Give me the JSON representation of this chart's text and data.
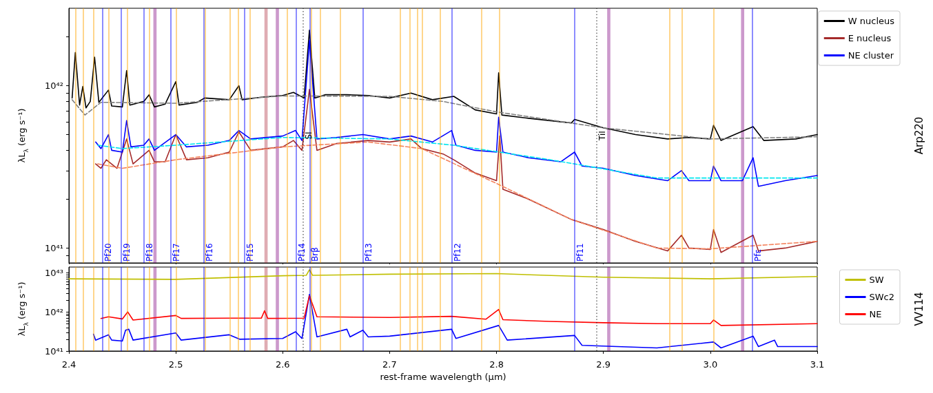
{
  "chart_data": [
    {
      "type": "line",
      "ylabel": "λL$_{λ}$ (erg s⁻¹)",
      "annotations": [
        "Arp220"
      ],
      "log": "y",
      "marker": "none",
      "legend": "right",
      "tick_labels": "y",
      "xlim": [
        2.4,
        3.1
      ],
      "xticks": [
        {
          "value": 2.4,
          "label": null
        },
        {
          "value": 2.5,
          "label": null
        },
        {
          "value": 2.6,
          "label": null
        },
        {
          "value": 2.7,
          "label": null
        },
        {
          "value": 2.8,
          "label": null
        },
        {
          "value": 2.9,
          "label": null
        },
        {
          "value": 3,
          "label": null
        },
        {
          "value": 3.1,
          "label": null
        }
      ],
      "ylim": [
        8.1e+40,
        3e+42
      ],
      "yticks": [
        {
          "value": 9e+40,
          "label": null
        },
        {
          "value": 1e+41,
          "label": "10⁴¹"
        },
        {
          "value": 2e+41,
          "label": null
        },
        {
          "value": 3e+41,
          "label": null
        },
        {
          "value": 4e+41,
          "label": null
        },
        {
          "value": 5e+41,
          "label": null
        },
        {
          "value": 6e+41,
          "label": null
        },
        {
          "value": 7e+41,
          "label": null
        },
        {
          "value": 8e+41,
          "label": null
        },
        {
          "value": 9e+41,
          "label": null
        },
        {
          "value": 1e+42,
          "label": "10⁴²"
        },
        {
          "value": 2e+42,
          "label": null
        }
      ],
      "series": [
        {
          "name": "W nucleus",
          "color": "#000000",
          "x": [
            2.403,
            2.406,
            2.41,
            2.413,
            2.416,
            2.42,
            2.424,
            2.428,
            2.437,
            2.44,
            2.45,
            2.454,
            2.457,
            2.47,
            2.475,
            2.48,
            2.49,
            2.5,
            2.503,
            2.52,
            2.527,
            2.55,
            2.559,
            2.562,
            2.58,
            2.6,
            2.61,
            2.62,
            2.625,
            2.63,
            2.64,
            2.66,
            2.68,
            2.7,
            2.72,
            2.74,
            2.76,
            2.78,
            2.8,
            2.802,
            2.805,
            2.83,
            2.87,
            2.873,
            2.9,
            2.93,
            2.96,
            2.98,
            3.0,
            3.003,
            3.01,
            3.04,
            3.05,
            3.08,
            3.1
          ],
          "values": [
            8.4e+41,
            1.6e+42,
            7.6e+41,
            9.9e+41,
            7.3e+41,
            8e+41,
            1.5e+42,
            7.9e+41,
            9.4e+41,
            7.5e+41,
            7.4e+41,
            1.24e+42,
            7.6e+41,
            8e+41,
            8.8e+41,
            7.4e+41,
            7.7e+41,
            1.06e+42,
            7.6e+41,
            7.9e+41,
            8.4e+41,
            8.2e+41,
            1e+42,
            8.2e+41,
            8.5e+41,
            8.7e+41,
            9.1e+41,
            8.4e+41,
            2.2e+42,
            8.4e+41,
            8.8e+41,
            8.8e+41,
            8.7e+41,
            8.4e+41,
            9e+41,
            8.2e+41,
            8.6e+41,
            7.1e+41,
            6.7e+41,
            1.2e+42,
            6.6e+41,
            6.3e+41,
            5.9e+41,
            6.2e+41,
            5.5e+41,
            5e+41,
            4.7e+41,
            4.8e+41,
            4.7e+41,
            5.7e+41,
            4.6e+41,
            5.6e+41,
            4.6e+41,
            4.7e+41,
            5e+41
          ]
        },
        {
          "name": "E nucleus",
          "color": "#a52a2a",
          "x": [
            2.425,
            2.43,
            2.435,
            2.445,
            2.454,
            2.46,
            2.475,
            2.48,
            2.49,
            2.5,
            2.51,
            2.53,
            2.55,
            2.559,
            2.57,
            2.6,
            2.61,
            2.618,
            2.625,
            2.632,
            2.65,
            2.68,
            2.7,
            2.72,
            2.73,
            2.75,
            2.76,
            2.78,
            2.8,
            2.803,
            2.806,
            2.83,
            2.87,
            2.9,
            2.93,
            2.96,
            2.973,
            2.98,
            3.0,
            3.003,
            3.01,
            3.04,
            3.045,
            3.07,
            3.1
          ],
          "values": [
            3.3e+41,
            3.1e+41,
            3.5e+41,
            3.1e+41,
            4.7e+41,
            3.3e+41,
            4e+41,
            3.4e+41,
            3.4e+41,
            5e+41,
            3.5e+41,
            3.6e+41,
            3.9e+41,
            5.2e+41,
            4e+41,
            4.2e+41,
            4.6e+41,
            4e+41,
            9.5e+41,
            4e+41,
            4.4e+41,
            4.6e+41,
            4.5e+41,
            4.7e+41,
            4.1e+41,
            3.8e+41,
            3.5e+41,
            2.9e+41,
            2.6e+41,
            4.9e+41,
            2.3e+41,
            2e+41,
            1.5e+41,
            1.3e+41,
            1.1e+41,
            9.6e+40,
            1.2e+41,
            1e+41,
            9.8e+40,
            1.3e+41,
            9.4e+40,
            1.2e+41,
            9.6e+40,
            1e+41,
            1.1e+41
          ]
        },
        {
          "name": "NE cluster",
          "color": "#0000ff",
          "x": [
            2.425,
            2.43,
            2.437,
            2.44,
            2.45,
            2.454,
            2.458,
            2.47,
            2.475,
            2.48,
            2.5,
            2.51,
            2.53,
            2.55,
            2.559,
            2.57,
            2.6,
            2.612,
            2.618,
            2.625,
            2.632,
            2.65,
            2.675,
            2.7,
            2.72,
            2.74,
            2.758,
            2.762,
            2.78,
            2.8,
            2.802,
            2.806,
            2.83,
            2.86,
            2.873,
            2.88,
            2.9,
            2.93,
            2.96,
            2.973,
            2.98,
            3.0,
            3.003,
            3.01,
            3.03,
            3.04,
            3.045,
            3.07,
            3.1
          ],
          "values": [
            4.5e+41,
            4.1e+41,
            5e+41,
            4e+41,
            3.9e+41,
            6.1e+41,
            4.2e+41,
            4.3e+41,
            4.7e+41,
            4e+41,
            5e+41,
            4.2e+41,
            4.3e+41,
            4.6e+41,
            5.3e+41,
            4.7e+41,
            4.9e+41,
            5.3e+41,
            4.6e+41,
            1.9e+42,
            4.7e+41,
            4.8e+41,
            5e+41,
            4.7e+41,
            4.9e+41,
            4.5e+41,
            5.3e+41,
            4.3e+41,
            4e+41,
            3.9e+41,
            6.4e+41,
            3.9e+41,
            3.6e+41,
            3.4e+41,
            3.9e+41,
            3.2e+41,
            3.1e+41,
            2.8e+41,
            2.6e+41,
            3e+41,
            2.6e+41,
            2.6e+41,
            3.2e+41,
            2.6e+41,
            2.6e+41,
            3.6e+41,
            2.4e+41,
            2.6e+41,
            2.8e+41
          ]
        },
        {
          "color": "#808080",
          "line_style": "dashed",
          "x": [
            2.403,
            2.415,
            2.43,
            2.5,
            2.6,
            2.7,
            2.75,
            2.8,
            2.9,
            3.0,
            3.1
          ],
          "values": [
            8.2e+41,
            6.6e+41,
            7.9e+41,
            7.8e+41,
            8.65e+41,
            8.6e+41,
            8e+41,
            6.9e+41,
            5.5e+41,
            4.7e+41,
            4.85e+41
          ]
        },
        {
          "color": "#f4845f",
          "line_style": "dashed",
          "x": [
            2.427,
            2.45,
            2.5,
            2.6,
            2.68,
            2.73,
            2.8,
            2.87,
            2.95,
            3.0,
            3.1
          ],
          "values": [
            3.3e+41,
            3.1e+41,
            3.5e+41,
            4.2e+41,
            4.5e+41,
            4.1e+41,
            2.5e+41,
            1.5e+41,
            1e+41,
            9.9e+40,
            1.1e+41
          ]
        },
        {
          "color": "#00e5ee",
          "line_style": "dashed",
          "x": [
            2.427,
            2.45,
            2.5,
            2.6,
            2.7,
            2.76,
            2.85,
            2.95,
            3.1
          ],
          "values": [
            4.3e+41,
            4.1e+41,
            4.3e+41,
            4.8e+41,
            4.7e+41,
            4.3e+41,
            3.5e+41,
            2.7e+41,
            2.7e+41
          ]
        }
      ],
      "ref_lines": [
        {
          "axis": "x",
          "value": 2.4066,
          "color": "#ffa500"
        },
        {
          "axis": "x",
          "value": 2.4131,
          "color": "#ffa500"
        },
        {
          "axis": "x",
          "value": 2.4233,
          "color": "#ffa500"
        },
        {
          "axis": "x",
          "value": 2.4371,
          "color": "#ffa500"
        },
        {
          "axis": "x",
          "value": 2.4546,
          "color": "#ffa500"
        },
        {
          "axis": "x",
          "value": 2.4755,
          "color": "#ffa500"
        },
        {
          "axis": "x",
          "value": 2.5003,
          "color": "#ffa500"
        },
        {
          "axis": "x",
          "value": 2.5272,
          "color": "#ffa500"
        },
        {
          "axis": "x",
          "value": 2.5507,
          "color": "#ffa500"
        },
        {
          "axis": "x",
          "value": 2.5585,
          "color": "#ffa500"
        },
        {
          "axis": "x",
          "value": 2.5695,
          "color": "#ffa500"
        },
        {
          "axis": "x",
          "value": 2.604,
          "color": "#ffa500"
        },
        {
          "axis": "x",
          "value": 2.6267,
          "color": "#ffa500"
        },
        {
          "axis": "x",
          "value": 2.6348,
          "color": "#ffa500"
        },
        {
          "axis": "x",
          "value": 2.6536,
          "color": "#ffa500"
        },
        {
          "axis": "x",
          "value": 2.7099,
          "color": "#ffa500"
        },
        {
          "axis": "x",
          "value": 2.7188,
          "color": "#ffa500"
        },
        {
          "axis": "x",
          "value": 2.7261,
          "color": "#ffa500"
        },
        {
          "axis": "x",
          "value": 2.7306,
          "color": "#ffa500"
        },
        {
          "axis": "x",
          "value": 2.7475,
          "color": "#ffa500"
        },
        {
          "axis": "x",
          "value": 2.786,
          "color": "#ffa500"
        },
        {
          "axis": "x",
          "value": 2.803,
          "color": "#ffa500"
        },
        {
          "axis": "x",
          "value": 2.9617,
          "color": "#ffa500"
        },
        {
          "axis": "x",
          "value": 2.9737,
          "color": "#ffa500"
        },
        {
          "axis": "x",
          "value": 3.0034,
          "color": "#ffa500"
        },
        {
          "axis": "x",
          "value": 2.4314,
          "label": "Pf20",
          "color": "#0000ff"
        },
        {
          "axis": "x",
          "value": 2.449,
          "label": "Pf19",
          "color": "#0000ff"
        },
        {
          "axis": "x",
          "value": 2.47,
          "label": "Pf18",
          "color": "#0000ff"
        },
        {
          "axis": "x",
          "value": 2.4953,
          "label": "Pf17",
          "color": "#0000ff"
        },
        {
          "axis": "x",
          "value": 2.5263,
          "label": "Pf16",
          "color": "#0000ff"
        },
        {
          "axis": "x",
          "value": 2.5643,
          "label": "Pf15",
          "color": "#0000ff"
        },
        {
          "axis": "x",
          "value": 2.6126,
          "label": "Pf14",
          "color": "#0000ff"
        },
        {
          "axis": "x",
          "value": 2.6252,
          "label": "Brβ",
          "color": "#0000ff"
        },
        {
          "axis": "x",
          "value": 2.6751,
          "label": "Pf13",
          "color": "#0000ff"
        },
        {
          "axis": "x",
          "value": 2.7583,
          "label": "Pf12",
          "color": "#0000ff"
        },
        {
          "axis": "x",
          "value": 2.873,
          "label": "Pf11",
          "color": "#0000ff"
        },
        {
          "axis": "x",
          "value": 3.0392,
          "label": "Pfε",
          "color": "#0000ff"
        },
        {
          "axis": "x",
          "value": 2.6191,
          "label": "SI",
          "color": "#000000",
          "line_style": "dotted"
        },
        {
          "axis": "x",
          "value": 2.8935,
          "label": "TiI",
          "color": "#000000",
          "line_style": "dotted"
        }
      ],
      "bands": [
        {
          "axis": "x",
          "from": 2.479,
          "to": 2.482,
          "color": "#800080"
        },
        {
          "axis": "x",
          "from": 2.5829,
          "to": 2.5859,
          "color": "#b03040"
        },
        {
          "axis": "x",
          "from": 2.5935,
          "to": 2.5965,
          "color": "#800080"
        },
        {
          "axis": "x",
          "from": 2.9035,
          "to": 2.9065,
          "color": "#800080"
        },
        {
          "axis": "x",
          "from": 3.0287,
          "to": 3.0317,
          "color": "#800080"
        }
      ]
    },
    {
      "type": "line",
      "xlabel": "rest-frame wavelength (μm)",
      "ylabel": "λL$_{λ}$ (erg s⁻¹)",
      "annotations": [
        "VV114"
      ],
      "log": "y",
      "marker": "none",
      "legend": "right",
      "xlim": [
        2.4,
        3.1
      ],
      "xticks": [
        2.4,
        2.5,
        2.6,
        2.7,
        2.8,
        2.9,
        {
          "value": 3,
          "label": "3.0"
        },
        3.1
      ],
      "ylim": [
        1e+41,
        1.4e+43
      ],
      "yticks": [
        {
          "value": 1e+41,
          "label": "10⁴¹"
        },
        {
          "value": 2e+41,
          "label": null
        },
        {
          "value": 3e+41,
          "label": null
        },
        {
          "value": 4e+41,
          "label": null
        },
        {
          "value": 5e+41,
          "label": null
        },
        {
          "value": 6e+41,
          "label": null
        },
        {
          "value": 7e+41,
          "label": null
        },
        {
          "value": 8e+41,
          "label": null
        },
        {
          "value": 9e+41,
          "label": null
        },
        {
          "value": 1e+42,
          "label": "10⁴²"
        },
        {
          "value": 2e+42,
          "label": null
        },
        {
          "value": 3e+42,
          "label": null
        },
        {
          "value": 4e+42,
          "label": null
        },
        {
          "value": 5e+42,
          "label": null
        },
        {
          "value": 6e+42,
          "label": null
        },
        {
          "value": 7e+42,
          "label": null
        },
        {
          "value": 8e+42,
          "label": null
        },
        {
          "value": 9e+42,
          "label": null
        },
        {
          "value": 1e+43,
          "label": "10⁴³"
        }
      ],
      "series": [
        {
          "name": "SW",
          "color": "#bfbf00",
          "x": [
            2.4,
            2.5,
            2.6,
            2.622,
            2.625,
            2.628,
            2.7,
            2.8,
            2.9,
            3.0,
            3.1
          ],
          "values": [
            7e+42,
            6.8e+42,
            8.4e+42,
            8.6e+42,
            1.2e+43,
            8.6e+42,
            9.2e+42,
            9.5e+42,
            7.7e+42,
            7e+42,
            8e+42
          ]
        },
        {
          "name": "SWc2",
          "color": "#0000ff",
          "x": [
            2.423,
            2.425,
            2.437,
            2.44,
            2.45,
            2.453,
            2.456,
            2.46,
            2.5,
            2.505,
            2.55,
            2.56,
            2.6,
            2.612,
            2.618,
            2.625,
            2.632,
            2.66,
            2.663,
            2.675,
            2.68,
            2.7,
            2.758,
            2.762,
            2.802,
            2.81,
            2.873,
            2.88,
            2.95,
            3.003,
            3.01,
            3.04,
            3.045,
            3.06,
            3.063,
            3.1
          ],
          "values": [
            2.7e+41,
            1.9e+41,
            2.6e+41,
            1.9e+41,
            1.8e+41,
            3.4e+41,
            3.6e+41,
            1.9e+41,
            2.9e+41,
            1.9e+41,
            2.6e+41,
            2e+41,
            2.1e+41,
            3.1e+41,
            2.1e+41,
            2.8e+42,
            2.3e+41,
            3.6e+41,
            2.3e+41,
            3.4e+41,
            2.3e+41,
            2.4e+41,
            3.6e+41,
            2.1e+41,
            4.5e+41,
            1.9e+41,
            2.5e+41,
            1.4e+41,
            1.2e+41,
            1.7e+41,
            1.2e+41,
            2.4e+41,
            1.3e+41,
            1.9e+41,
            1.3e+41,
            1.3e+41
          ]
        },
        {
          "name": "NE",
          "color": "#ff0000",
          "x": [
            2.43,
            2.437,
            2.45,
            2.455,
            2.46,
            2.5,
            2.505,
            2.55,
            2.58,
            2.583,
            2.586,
            2.62,
            2.625,
            2.632,
            2.7,
            2.758,
            2.79,
            2.802,
            2.806,
            2.85,
            2.9,
            2.95,
            3.0,
            3.003,
            3.01,
            3.1
          ],
          "values": [
            6.8e+41,
            7.5e+41,
            6.6e+41,
            1e+42,
            6.2e+41,
            8.1e+41,
            6.8e+41,
            6.9e+41,
            6.9e+41,
            1.07e+42,
            6.8e+41,
            6.9e+41,
            2.6e+42,
            7.5e+41,
            7.2e+41,
            7.7e+41,
            6.5e+41,
            1.15e+42,
            6.3e+41,
            5.7e+41,
            5.3e+41,
            5e+41,
            5e+41,
            6.2e+41,
            4.5e+41,
            5e+41
          ]
        }
      ],
      "ref_lines": [
        {
          "axis": "x",
          "value": 2.4066,
          "color": "#ffa500"
        },
        {
          "axis": "x",
          "value": 2.4131,
          "color": "#ffa500"
        },
        {
          "axis": "x",
          "value": 2.4233,
          "color": "#ffa500"
        },
        {
          "axis": "x",
          "value": 2.4371,
          "color": "#ffa500"
        },
        {
          "axis": "x",
          "value": 2.4546,
          "color": "#ffa500"
        },
        {
          "axis": "x",
          "value": 2.4755,
          "color": "#ffa500"
        },
        {
          "axis": "x",
          "value": 2.5003,
          "color": "#ffa500"
        },
        {
          "axis": "x",
          "value": 2.5272,
          "color": "#ffa500"
        },
        {
          "axis": "x",
          "value": 2.5507,
          "color": "#ffa500"
        },
        {
          "axis": "x",
          "value": 2.5585,
          "color": "#ffa500"
        },
        {
          "axis": "x",
          "value": 2.5695,
          "color": "#ffa500"
        },
        {
          "axis": "x",
          "value": 2.604,
          "color": "#ffa500"
        },
        {
          "axis": "x",
          "value": 2.6267,
          "color": "#ffa500"
        },
        {
          "axis": "x",
          "value": 2.6348,
          "color": "#ffa500"
        },
        {
          "axis": "x",
          "value": 2.6536,
          "color": "#ffa500"
        },
        {
          "axis": "x",
          "value": 2.7099,
          "color": "#ffa500"
        },
        {
          "axis": "x",
          "value": 2.7188,
          "color": "#ffa500"
        },
        {
          "axis": "x",
          "value": 2.7261,
          "color": "#ffa500"
        },
        {
          "axis": "x",
          "value": 2.7306,
          "color": "#ffa500"
        },
        {
          "axis": "x",
          "value": 2.7475,
          "color": "#ffa500"
        },
        {
          "axis": "x",
          "value": 2.786,
          "color": "#ffa500"
        },
        {
          "axis": "x",
          "value": 2.803,
          "color": "#ffa500"
        },
        {
          "axis": "x",
          "value": 2.9617,
          "color": "#ffa500"
        },
        {
          "axis": "x",
          "value": 2.9737,
          "color": "#ffa500"
        },
        {
          "axis": "x",
          "value": 3.0034,
          "color": "#ffa500"
        },
        {
          "axis": "x",
          "value": 2.4314,
          "color": "#0000ff"
        },
        {
          "axis": "x",
          "value": 2.449,
          "color": "#0000ff"
        },
        {
          "axis": "x",
          "value": 2.47,
          "color": "#0000ff"
        },
        {
          "axis": "x",
          "value": 2.4953,
          "color": "#0000ff"
        },
        {
          "axis": "x",
          "value": 2.5263,
          "color": "#0000ff"
        },
        {
          "axis": "x",
          "value": 2.5643,
          "color": "#0000ff"
        },
        {
          "axis": "x",
          "value": 2.6126,
          "color": "#0000ff"
        },
        {
          "axis": "x",
          "value": 2.6252,
          "color": "#0000ff"
        },
        {
          "axis": "x",
          "value": 2.6751,
          "color": "#0000ff"
        },
        {
          "axis": "x",
          "value": 2.7583,
          "color": "#0000ff"
        },
        {
          "axis": "x",
          "value": 2.873,
          "color": "#0000ff"
        },
        {
          "axis": "x",
          "value": 3.0392,
          "color": "#0000ff"
        },
        {
          "axis": "x",
          "value": 2.6191,
          "color": "#000000",
          "line_style": "dotted"
        },
        {
          "axis": "x",
          "value": 2.8935,
          "color": "#000000",
          "line_style": "dotted"
        }
      ],
      "bands": [
        {
          "axis": "x",
          "from": 2.479,
          "to": 2.482,
          "color": "#800080"
        },
        {
          "axis": "x",
          "from": 2.5829,
          "to": 2.5859,
          "color": "#b03040"
        },
        {
          "axis": "x",
          "from": 2.5935,
          "to": 2.5965,
          "color": "#800080"
        },
        {
          "axis": "x",
          "from": 2.9035,
          "to": 2.9065,
          "color": "#800080"
        },
        {
          "axis": "x",
          "from": 3.0287,
          "to": 3.0317,
          "color": "#800080"
        }
      ]
    }
  ]
}
